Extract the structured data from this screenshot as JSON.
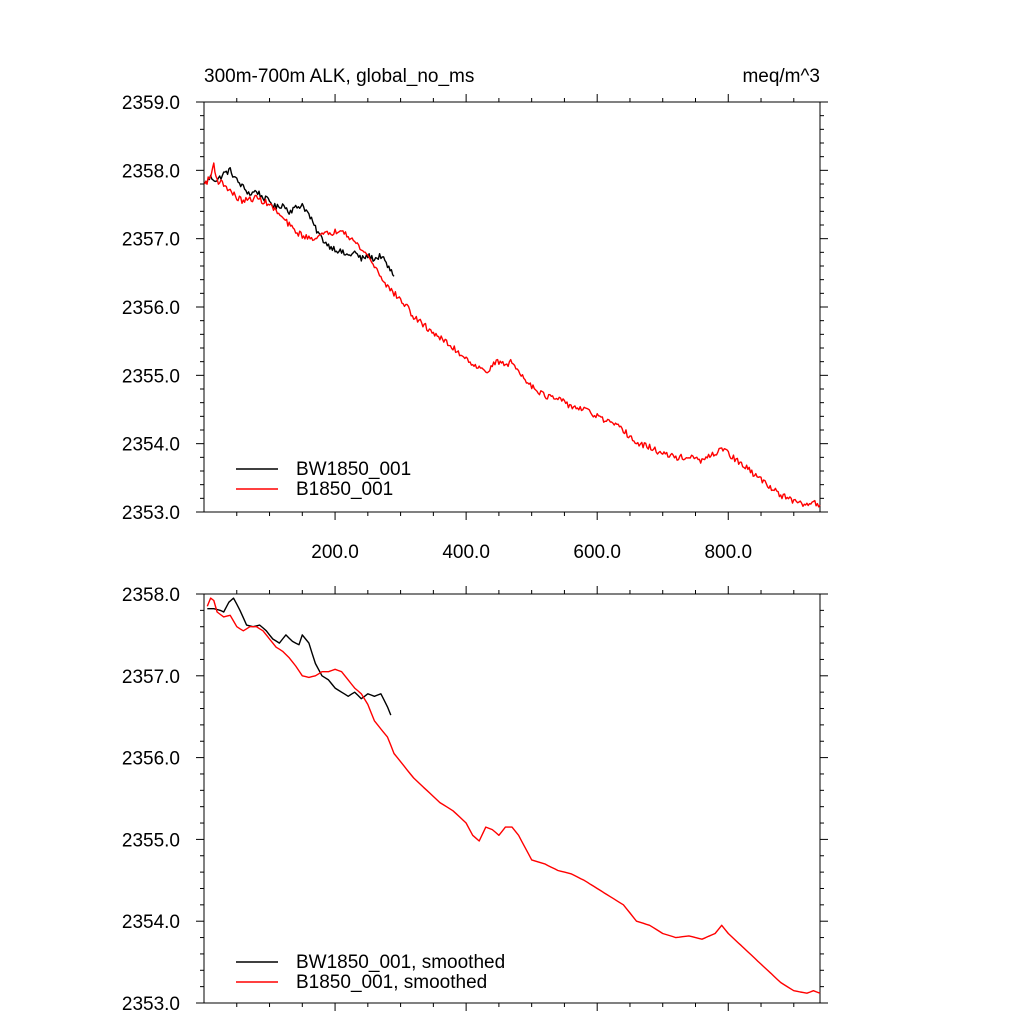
{
  "header": {
    "title": "300m-700m ALK, global_no_ms",
    "units": "meq/m^3"
  },
  "chart_data": [
    {
      "type": "line",
      "xlim": [
        0,
        940
      ],
      "ylim": [
        2353.0,
        2359.0
      ],
      "ytick_values": [
        2353.0,
        2354.0,
        2355.0,
        2356.0,
        2357.0,
        2358.0,
        2359.0
      ],
      "ytick_labels": [
        "2353.0",
        "2354.0",
        "2355.0",
        "2356.0",
        "2357.0",
        "2358.0",
        "2359.0"
      ],
      "xtick_values": [
        200,
        400,
        600,
        800
      ],
      "xtick_labels": [
        "200.0",
        "400.0",
        "600.0",
        "800.0"
      ],
      "grid": false,
      "legend_position": "bottom-left",
      "noise": 0.045,
      "series": [
        {
          "name": "BW1850_001",
          "color": "#000000",
          "x": [
            1,
            10,
            20,
            30,
            40,
            50,
            60,
            70,
            80,
            90,
            100,
            110,
            120,
            130,
            140,
            150,
            160,
            170,
            180,
            190,
            200,
            210,
            220,
            230,
            240,
            250,
            260,
            270,
            280,
            290
          ],
          "y": [
            2357.8,
            2357.9,
            2357.85,
            2357.95,
            2358.0,
            2357.85,
            2357.75,
            2357.65,
            2357.7,
            2357.6,
            2357.55,
            2357.45,
            2357.5,
            2357.4,
            2357.45,
            2357.5,
            2357.35,
            2357.15,
            2357.0,
            2356.9,
            2356.85,
            2356.8,
            2356.75,
            2356.8,
            2356.7,
            2356.75,
            2356.7,
            2356.75,
            2356.6,
            2356.45
          ]
        },
        {
          "name": "B1850_001",
          "color": "#ff0000",
          "x": [
            1,
            10,
            15,
            20,
            30,
            40,
            50,
            60,
            80,
            100,
            120,
            140,
            160,
            180,
            200,
            210,
            220,
            230,
            240,
            250,
            260,
            270,
            280,
            290,
            300,
            310,
            320,
            340,
            360,
            380,
            400,
            420,
            430,
            440,
            450,
            460,
            470,
            480,
            500,
            520,
            540,
            560,
            580,
            600,
            620,
            640,
            660,
            680,
            700,
            720,
            740,
            760,
            780,
            790,
            800,
            820,
            840,
            860,
            880,
            900,
            920,
            930,
            940
          ],
          "y": [
            2357.8,
            2357.9,
            2358.1,
            2357.85,
            2357.8,
            2357.7,
            2357.6,
            2357.55,
            2357.6,
            2357.5,
            2357.3,
            2357.1,
            2357.0,
            2357.05,
            2357.1,
            2357.15,
            2357.05,
            2356.95,
            2356.85,
            2356.75,
            2356.6,
            2356.45,
            2356.3,
            2356.2,
            2356.1,
            2356.0,
            2355.85,
            2355.7,
            2355.55,
            2355.4,
            2355.25,
            2355.1,
            2355.05,
            2355.15,
            2355.2,
            2355.15,
            2355.2,
            2355.05,
            2354.85,
            2354.7,
            2354.65,
            2354.55,
            2354.5,
            2354.4,
            2354.3,
            2354.2,
            2354.0,
            2353.95,
            2353.85,
            2353.8,
            2353.8,
            2353.75,
            2353.85,
            2353.95,
            2353.85,
            2353.7,
            2353.55,
            2353.4,
            2353.25,
            2353.15,
            2353.1,
            2353.15,
            2353.1
          ]
        }
      ]
    },
    {
      "type": "line",
      "xlim": [
        0,
        940
      ],
      "ylim": [
        2353.0,
        2358.0
      ],
      "ytick_values": [
        2353.0,
        2354.0,
        2355.0,
        2356.0,
        2357.0,
        2358.0
      ],
      "ytick_labels": [
        "2353.0",
        "2354.0",
        "2355.0",
        "2356.0",
        "2357.0",
        "2358.0"
      ],
      "xtick_values": [
        200,
        400,
        600,
        800
      ],
      "xtick_labels": [],
      "grid": false,
      "legend_position": "bottom-left",
      "noise": 0,
      "series": [
        {
          "name": "BW1850_001, smoothed",
          "color": "#000000",
          "x": [
            5,
            15,
            25,
            30,
            38,
            45,
            55,
            65,
            75,
            85,
            95,
            105,
            115,
            125,
            135,
            145,
            150,
            160,
            170,
            180,
            190,
            200,
            210,
            220,
            230,
            240,
            250,
            260,
            270,
            280,
            285
          ],
          "y": [
            2357.82,
            2357.82,
            2357.8,
            2357.78,
            2357.9,
            2357.95,
            2357.8,
            2357.62,
            2357.6,
            2357.62,
            2357.55,
            2357.45,
            2357.4,
            2357.5,
            2357.42,
            2357.38,
            2357.5,
            2357.4,
            2357.15,
            2357.0,
            2356.95,
            2356.85,
            2356.8,
            2356.75,
            2356.8,
            2356.72,
            2356.78,
            2356.75,
            2356.78,
            2356.62,
            2356.52
          ]
        },
        {
          "name": "B1850_001, smoothed",
          "color": "#ff0000",
          "x": [
            5,
            10,
            15,
            20,
            30,
            40,
            50,
            60,
            70,
            80,
            90,
            100,
            110,
            120,
            130,
            140,
            150,
            160,
            170,
            180,
            190,
            200,
            210,
            220,
            230,
            240,
            250,
            260,
            270,
            280,
            290,
            300,
            320,
            340,
            360,
            380,
            400,
            410,
            420,
            430,
            440,
            450,
            460,
            470,
            480,
            490,
            500,
            520,
            540,
            560,
            580,
            600,
            620,
            640,
            660,
            680,
            700,
            720,
            740,
            760,
            780,
            790,
            800,
            820,
            840,
            860,
            880,
            900,
            920,
            930,
            940
          ],
          "y": [
            2357.85,
            2357.95,
            2357.92,
            2357.78,
            2357.72,
            2357.74,
            2357.6,
            2357.55,
            2357.6,
            2357.6,
            2357.55,
            2357.45,
            2357.35,
            2357.3,
            2357.22,
            2357.12,
            2357.0,
            2356.98,
            2357.0,
            2357.05,
            2357.05,
            2357.08,
            2357.05,
            2356.95,
            2356.85,
            2356.78,
            2356.65,
            2356.45,
            2356.35,
            2356.25,
            2356.05,
            2355.95,
            2355.75,
            2355.6,
            2355.45,
            2355.35,
            2355.2,
            2355.05,
            2354.98,
            2355.15,
            2355.12,
            2355.05,
            2355.15,
            2355.15,
            2355.05,
            2354.9,
            2354.75,
            2354.7,
            2354.62,
            2354.58,
            2354.5,
            2354.4,
            2354.3,
            2354.2,
            2354.0,
            2353.95,
            2353.85,
            2353.8,
            2353.82,
            2353.78,
            2353.85,
            2353.95,
            2353.85,
            2353.7,
            2353.55,
            2353.4,
            2353.25,
            2353.15,
            2353.12,
            2353.15,
            2353.12
          ]
        }
      ]
    }
  ]
}
